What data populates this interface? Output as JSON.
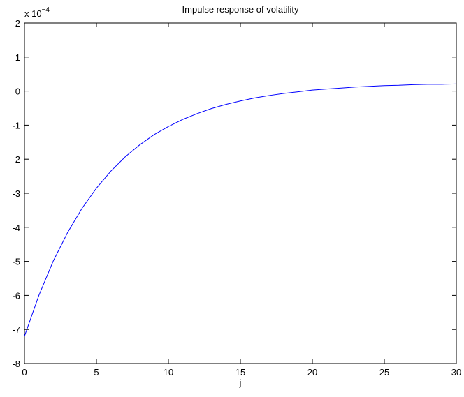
{
  "chart_data": {
    "type": "line",
    "title": "Impulse response of volatility",
    "xlabel": "j",
    "y_multiplier": {
      "base": "x 10",
      "exponent": "−4"
    },
    "x": [
      0,
      1,
      2,
      3,
      4,
      5,
      6,
      7,
      8,
      9,
      10,
      11,
      12,
      13,
      14,
      15,
      16,
      17,
      18,
      19,
      20,
      21,
      22,
      23,
      24,
      25,
      26,
      27,
      28,
      29,
      30
    ],
    "values": [
      -7.2,
      -6.0,
      -4.99,
      -4.15,
      -3.44,
      -2.85,
      -2.35,
      -1.93,
      -1.58,
      -1.28,
      -1.04,
      -0.83,
      -0.66,
      -0.51,
      -0.39,
      -0.29,
      -0.2,
      -0.13,
      -0.07,
      -0.02,
      0.03,
      0.06,
      0.09,
      0.12,
      0.14,
      0.16,
      0.17,
      0.19,
      0.2,
      0.2,
      0.21
    ],
    "color": "#0000ff",
    "xlim": [
      0,
      30
    ],
    "xticks": [
      0,
      5,
      10,
      15,
      20,
      25,
      30
    ],
    "ylim": [
      -8,
      2
    ],
    "yticks": [
      -8,
      -7,
      -6,
      -5,
      -4,
      -3,
      -2,
      -1,
      0,
      1,
      2
    ]
  }
}
